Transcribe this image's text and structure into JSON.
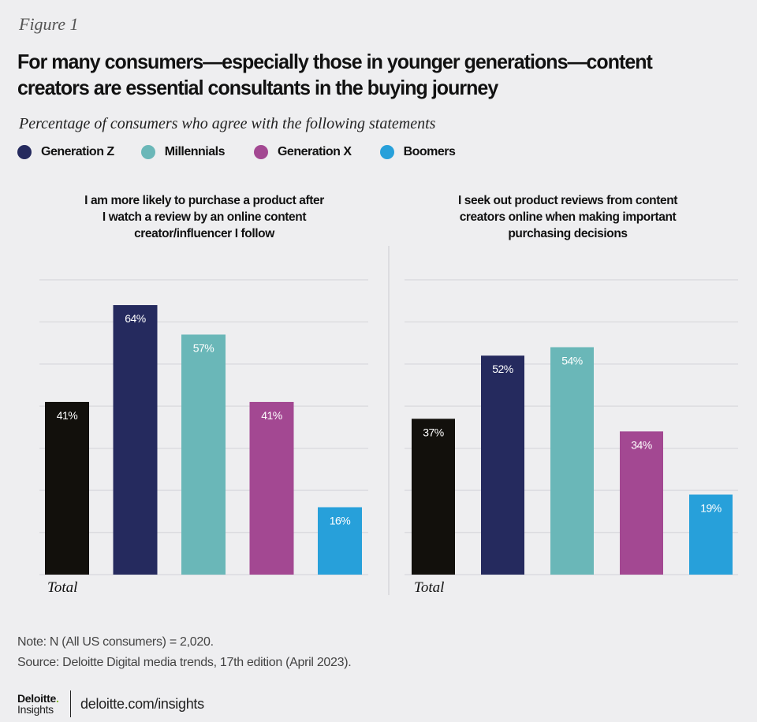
{
  "figure_label": "Figure 1",
  "title": "For many consumers—especially those in younger generations—content creators are essential consultants in the buying journey",
  "subtitle": "Percentage of consumers who agree with the following statements",
  "legend": [
    {
      "label": "Generation Z",
      "color": "#252a5e"
    },
    {
      "label": "Millennials",
      "color": "#6ab7b8"
    },
    {
      "label": "Generation X",
      "color": "#a34892"
    },
    {
      "label": "Boomers",
      "color": "#27a0da"
    }
  ],
  "chart_data": [
    {
      "type": "bar",
      "title": "I am more likely to purchase a product after I watch a review by an online content creator/influencer I follow",
      "title_lines": [
        "I am more likely to purchase a product after",
        "I watch a review by an online content",
        "creator/influencer I follow"
      ],
      "categories": [
        "Total",
        "Generation Z",
        "Millennials",
        "Generation X",
        "Boomers"
      ],
      "values": [
        41,
        64,
        57,
        41,
        16
      ],
      "data_labels": [
        "41%",
        "64%",
        "57%",
        "41%",
        "16%"
      ],
      "colors": [
        "#12100c",
        "#252a5e",
        "#6ab7b8",
        "#a34892",
        "#27a0da"
      ],
      "x_axis_label": "Total",
      "ylim": [
        0,
        70
      ],
      "gridlines_every": 10,
      "grid": true,
      "unit": "%"
    },
    {
      "type": "bar",
      "title": "I seek out product reviews from content creators online when making important purchasing decisions",
      "title_lines": [
        "I seek out product reviews from content",
        "creators online when making important",
        "purchasing decisions"
      ],
      "categories": [
        "Total",
        "Generation Z",
        "Millennials",
        "Generation X",
        "Boomers"
      ],
      "values": [
        37,
        52,
        54,
        34,
        19
      ],
      "data_labels": [
        "37%",
        "52%",
        "54%",
        "34%",
        "19%"
      ],
      "colors": [
        "#12100c",
        "#252a5e",
        "#6ab7b8",
        "#a34892",
        "#27a0da"
      ],
      "x_axis_label": "Total",
      "ylim": [
        0,
        70
      ],
      "gridlines_every": 10,
      "grid": true,
      "unit": "%"
    }
  ],
  "note": "Note: N (All US consumers) = 2,020.",
  "source": "Source: Deloitte Digital media trends, 17th edition (April 2023).",
  "footer": {
    "logo_top": "Deloitte",
    "logo_dot": ".",
    "logo_bottom": "Insights",
    "link": "deloitte.com/insights"
  }
}
